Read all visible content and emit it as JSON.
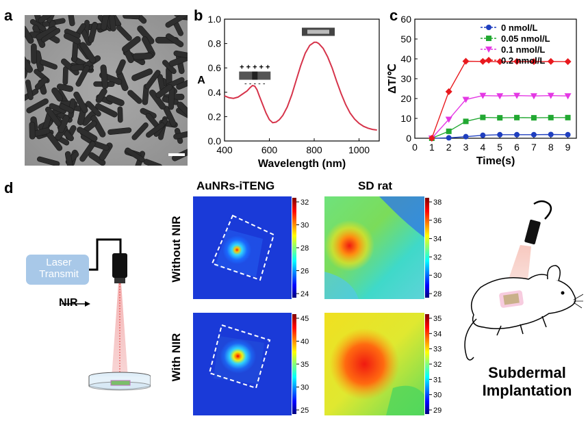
{
  "panels": {
    "a": "a",
    "b": "b",
    "c": "c",
    "d": "d"
  },
  "chart_data": [
    {
      "type": "line",
      "id": "b",
      "title": "",
      "xlabel": "Wavelength (nm)",
      "ylabel": "A",
      "xlim": [
        400,
        1090
      ],
      "ylim": [
        0,
        1.0
      ],
      "xticks": [
        400,
        600,
        800,
        1000
      ],
      "yticks": [
        0.0,
        0.2,
        0.4,
        0.6,
        0.8,
        1.0
      ],
      "ytick_labels": [
        "0.0",
        "0.2",
        "0.4",
        "0.6",
        "0.8",
        "1.0"
      ],
      "series": [
        {
          "name": "absorbance",
          "color": "#d6334a",
          "x": [
            400,
            420,
            440,
            460,
            480,
            500,
            515,
            525,
            535,
            545,
            555,
            570,
            585,
            600,
            615,
            630,
            645,
            660,
            680,
            700,
            720,
            740,
            760,
            780,
            800,
            810,
            820,
            840,
            860,
            880,
            900,
            920,
            940,
            960,
            980,
            1000,
            1020,
            1040,
            1060,
            1080
          ],
          "y": [
            0.37,
            0.355,
            0.35,
            0.36,
            0.385,
            0.41,
            0.44,
            0.455,
            0.45,
            0.42,
            0.37,
            0.3,
            0.23,
            0.175,
            0.15,
            0.155,
            0.175,
            0.21,
            0.28,
            0.38,
            0.5,
            0.62,
            0.72,
            0.785,
            0.81,
            0.81,
            0.8,
            0.76,
            0.69,
            0.6,
            0.49,
            0.39,
            0.3,
            0.23,
            0.18,
            0.145,
            0.12,
            0.105,
            0.095,
            0.09
          ]
        }
      ]
    },
    {
      "type": "line",
      "id": "c",
      "title": "",
      "xlabel": "Time(s)",
      "ylabel": "ΔT/℃",
      "xlim": [
        0,
        9.5
      ],
      "ylim": [
        0,
        60
      ],
      "xticks": [
        0,
        1,
        2,
        3,
        4,
        5,
        6,
        7,
        8,
        9
      ],
      "yticks": [
        0,
        10,
        20,
        30,
        40,
        50,
        60
      ],
      "legend_position": "top-right",
      "series": [
        {
          "name": "0 nmol/L",
          "color": "#1f3fbf",
          "marker": "circle",
          "x": [
            1,
            2,
            3,
            4,
            5,
            6,
            7,
            8,
            9
          ],
          "y": [
            0,
            0.2,
            0.8,
            1.5,
            1.8,
            1.8,
            1.8,
            1.9,
            1.8
          ]
        },
        {
          "name": "0.05 nmol/L",
          "color": "#22a832",
          "marker": "square",
          "x": [
            1,
            2,
            3,
            4,
            5,
            6,
            7,
            8,
            9
          ],
          "y": [
            0,
            3.5,
            8.5,
            10.5,
            10.3,
            10.4,
            10.3,
            10.4,
            10.4
          ]
        },
        {
          "name": "0.1 nmol/L",
          "color": "#e438e4",
          "marker": "triangle-down",
          "x": [
            1,
            2,
            3,
            4,
            5,
            6,
            7,
            8,
            9
          ],
          "y": [
            0,
            9.5,
            19.5,
            21.5,
            21.3,
            21.5,
            21.3,
            21.5,
            21.3
          ]
        },
        {
          "name": "0.2 nmol/L",
          "color": "#e8191e",
          "marker": "diamond",
          "x": [
            1,
            2,
            3,
            4,
            5,
            6,
            7,
            8,
            9
          ],
          "y": [
            0,
            23.5,
            38.8,
            38.7,
            38.6,
            38.7,
            38.6,
            38.7,
            38.6
          ]
        }
      ]
    }
  ],
  "panel_b_insets": {
    "charges_top": "+ + + + +",
    "charges_bottom": "- - - - -"
  },
  "panel_d": {
    "col_heads": [
      "AuNRs-iTENG",
      "SD rat"
    ],
    "row_heads": [
      "Without NIR",
      "With NIR"
    ],
    "colorbars": [
      {
        "ticks": [
          "32",
          "30",
          "28",
          "26",
          "24"
        ]
      },
      {
        "ticks": [
          "38",
          "36",
          "34",
          "32",
          "30",
          "28"
        ]
      },
      {
        "ticks": [
          "45",
          "40",
          "35",
          "30",
          "25"
        ]
      },
      {
        "ticks": [
          "35",
          "34",
          "33",
          "32",
          "31",
          "30",
          "29"
        ]
      }
    ],
    "laser_label": "Laser Transmit",
    "nir_label": "NIR",
    "implant_label_1": "Subdermal",
    "implant_label_2": "Implantation"
  }
}
